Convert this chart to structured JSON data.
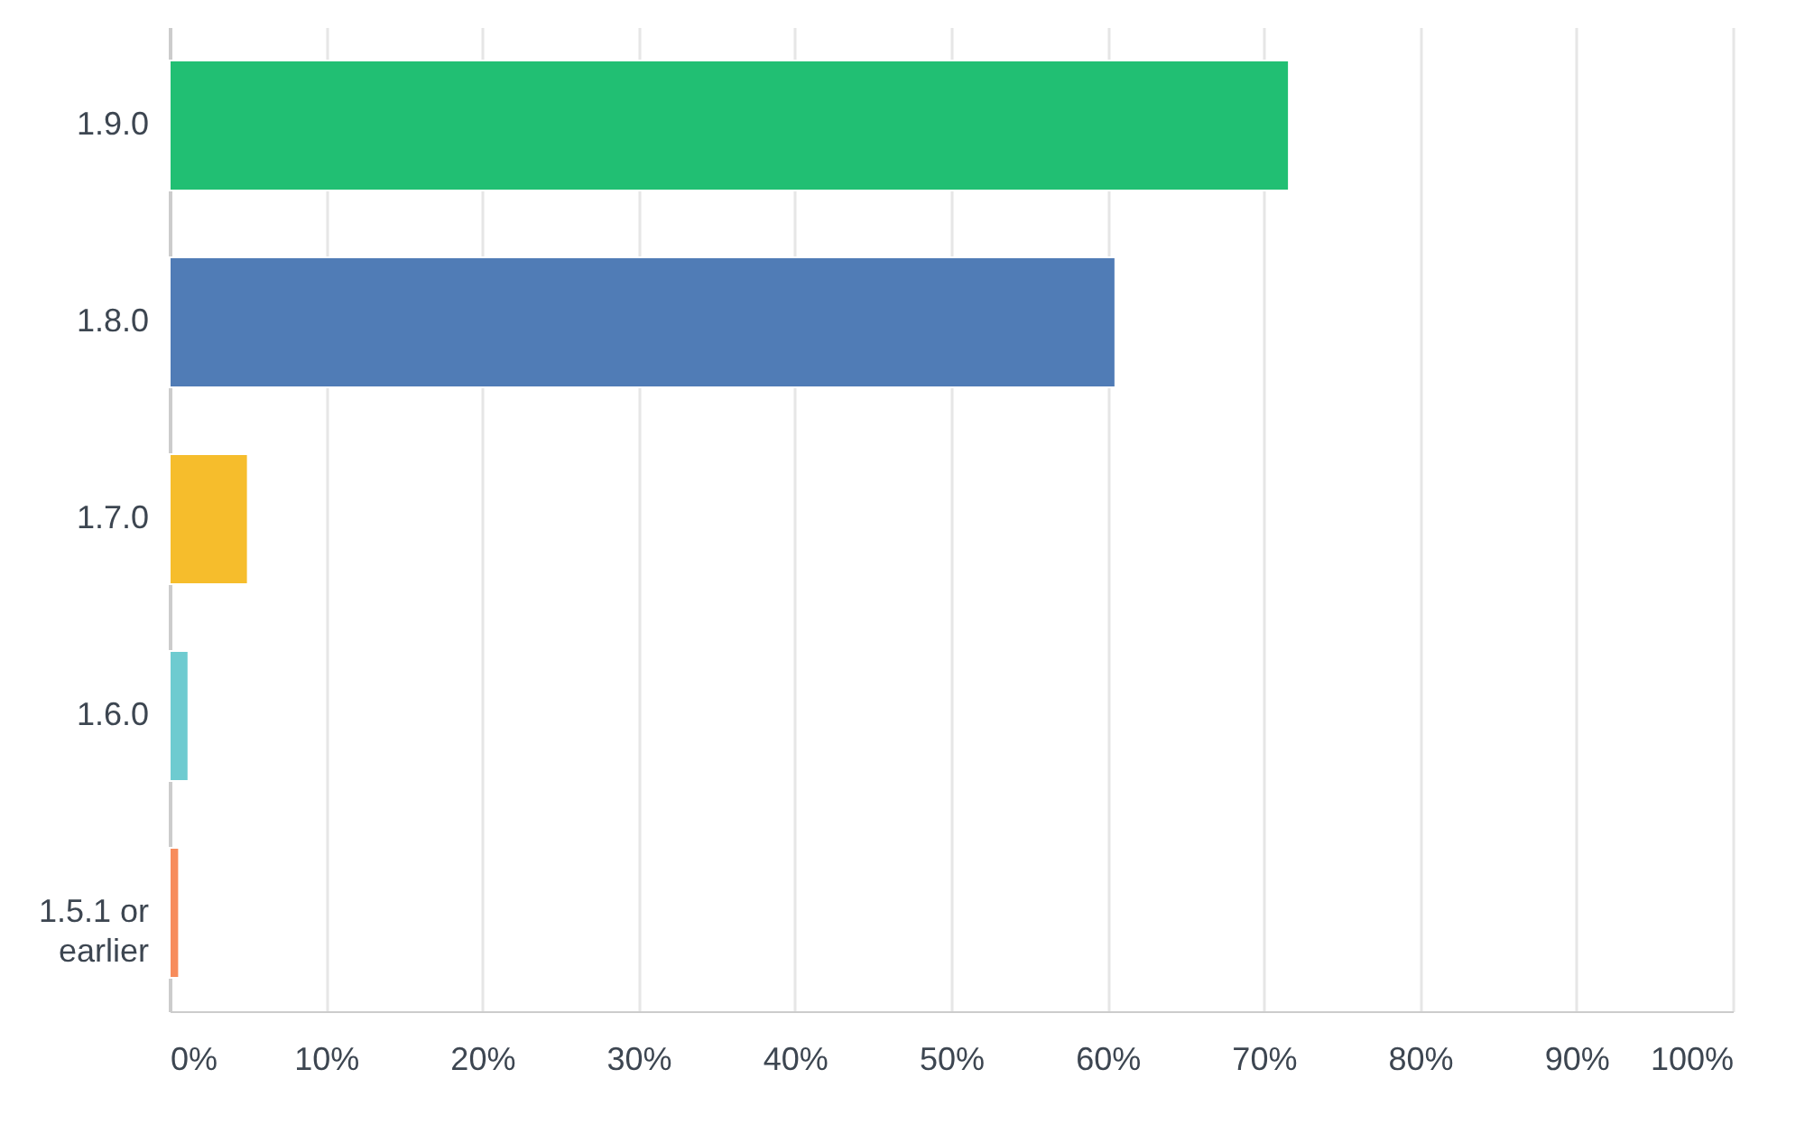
{
  "chart_data": {
    "type": "bar",
    "orientation": "horizontal",
    "categories": [
      "1.9.0",
      "1.8.0",
      "1.7.0",
      "1.6.0",
      "1.5.1 or earlier"
    ],
    "values": [
      71.6,
      60.5,
      5.0,
      1.2,
      0.6
    ],
    "colors": [
      "#21bf73",
      "#507cb6",
      "#f6bd2c",
      "#6ecbd0",
      "#f78c5c"
    ],
    "xlim": [
      0,
      100
    ],
    "xticks": [
      {
        "value": 0,
        "label": "0%"
      },
      {
        "value": 10,
        "label": "10%"
      },
      {
        "value": 20,
        "label": "20%"
      },
      {
        "value": 30,
        "label": "30%"
      },
      {
        "value": 40,
        "label": "40%"
      },
      {
        "value": 50,
        "label": "50%"
      },
      {
        "value": 60,
        "label": "60%"
      },
      {
        "value": 70,
        "label": "70%"
      },
      {
        "value": 80,
        "label": "80%"
      },
      {
        "value": 90,
        "label": "90%"
      },
      {
        "value": 100,
        "label": "100%"
      }
    ],
    "grid": "x"
  }
}
